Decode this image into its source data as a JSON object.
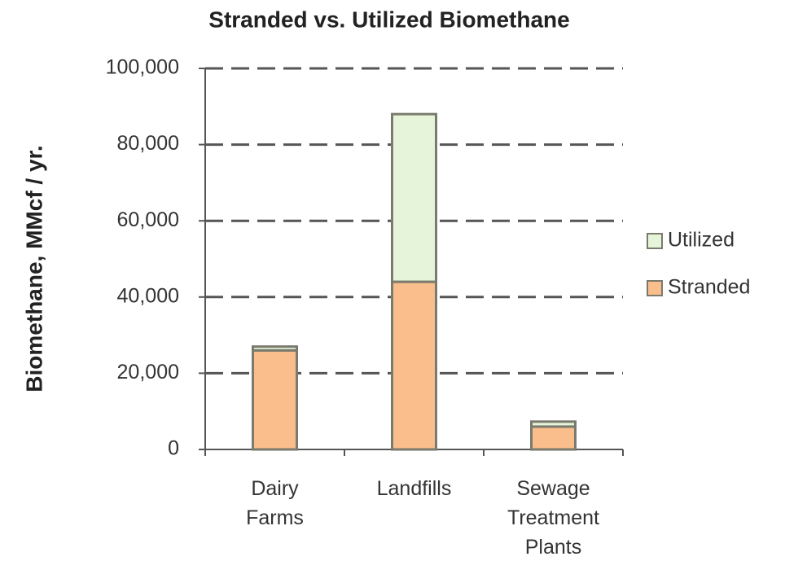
{
  "chart_data": {
    "type": "stacked_bar",
    "title": "Stranded vs. Utilized Biomethane",
    "y_label": "Biomethane, MMcf / yr.",
    "categories": [
      "Dairy Farms",
      "Landfills",
      "Sewage Treatment Plants"
    ],
    "series": [
      {
        "name": "Stranded",
        "color": "#f9be8c",
        "values": [
          26000,
          44000,
          6000
        ]
      },
      {
        "name": "Utilized",
        "color": "#e6f5d9",
        "values": [
          1000,
          44000,
          1300
        ]
      }
    ],
    "ylim": [
      0,
      100000
    ],
    "yticks": [
      0,
      {
        "value": 20000,
        "label": "20,000"
      },
      {
        "value": 40000,
        "label": "40,000"
      },
      {
        "value": 60000,
        "label": "60,000"
      },
      {
        "value": 80000,
        "label": "80,000"
      },
      {
        "value": 100000,
        "label": "100,000"
      }
    ],
    "grid": true,
    "legend": "right"
  }
}
